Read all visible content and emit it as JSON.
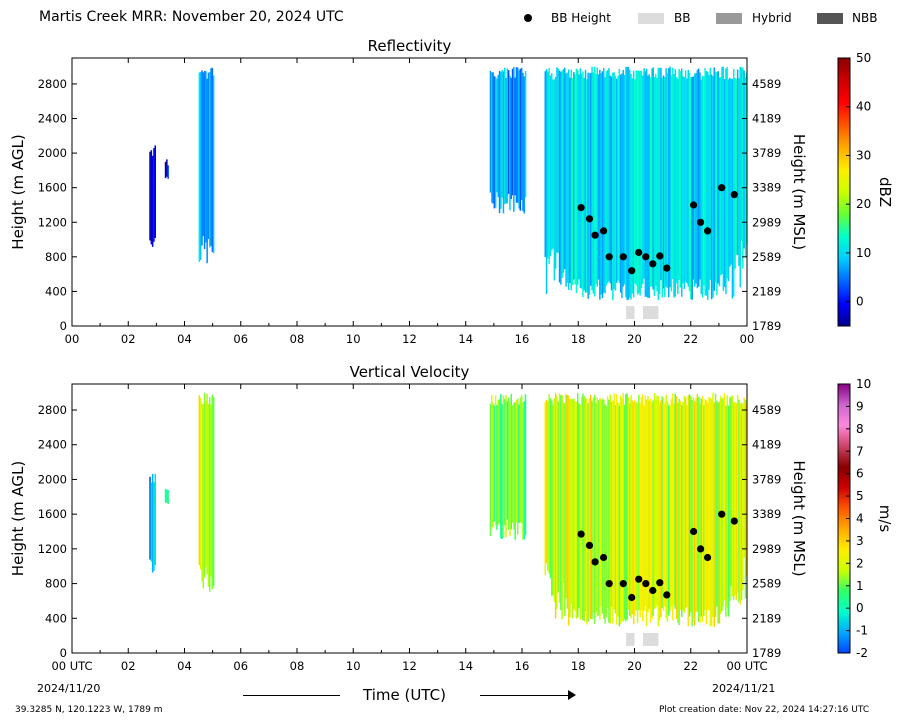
{
  "header": {
    "title": "Martis Creek MRR:  November 20, 2024 UTC",
    "legend": [
      {
        "label": "BB Height",
        "kind": "dot",
        "color": "#000000"
      },
      {
        "label": "BB",
        "kind": "box",
        "color": "#dcdcdc"
      },
      {
        "label": "Hybrid",
        "kind": "box",
        "color": "#999999"
      },
      {
        "label": "NBB",
        "kind": "box",
        "color": "#555555"
      }
    ]
  },
  "footer": {
    "location": "39.3285 N, 120.1223 W, 1789 m",
    "creation": "Plot creation date: Nov 22, 2024 14:27:16 UTC",
    "xlabel": "Time (UTC)",
    "date_start": "2024/11/20",
    "date_end": "2024/11/21"
  },
  "chart_data": [
    {
      "type": "heatmap",
      "title": "Reflectivity",
      "ylabel": "Height (m AGL)",
      "y2label": "Height (m MSL)",
      "xlim": [
        0,
        24
      ],
      "ylim": [
        0,
        3100
      ],
      "xticks": [
        "00",
        "02",
        "04",
        "06",
        "08",
        "10",
        "12",
        "14",
        "16",
        "18",
        "20",
        "22",
        "00"
      ],
      "yticks": [
        0,
        400,
        800,
        1200,
        1600,
        2000,
        2400,
        2800
      ],
      "y2ticks": [
        "1789",
        "2189",
        "2589",
        "2989",
        "3389",
        "3789",
        "4189",
        "4589"
      ],
      "colorbar": {
        "label": "dBZ",
        "min": -5,
        "max": 50,
        "ticks": [
          0,
          10,
          20,
          30,
          40,
          50
        ],
        "colors": [
          "#00008b",
          "#0000ff",
          "#0066ff",
          "#00ccff",
          "#00ffcc",
          "#66ff33",
          "#ccff00",
          "#ffee00",
          "#ffaa00",
          "#ff5500",
          "#ff0000",
          "#cc0000",
          "#8b0000"
        ]
      },
      "bb_height": [
        [
          18.1,
          1370
        ],
        [
          18.4,
          1240
        ],
        [
          18.6,
          1050
        ],
        [
          18.9,
          1100
        ],
        [
          19.1,
          800
        ],
        [
          19.6,
          800
        ],
        [
          19.9,
          640
        ],
        [
          20.15,
          850
        ],
        [
          20.4,
          800
        ],
        [
          20.65,
          720
        ],
        [
          20.9,
          810
        ],
        [
          21.15,
          670
        ],
        [
          22.1,
          1400
        ],
        [
          22.35,
          1200
        ],
        [
          22.6,
          1100
        ],
        [
          23.1,
          1600
        ],
        [
          23.55,
          1520
        ]
      ],
      "bb_type": [
        {
          "start": 19.7,
          "end": 20.0,
          "kind": "BB"
        },
        {
          "start": 20.3,
          "end": 20.85,
          "kind": "BB"
        }
      ],
      "echoes": [
        {
          "start": 2.75,
          "end": 2.95,
          "bottom": 900,
          "top": 2100,
          "value": -2
        },
        {
          "start": 3.3,
          "end": 3.4,
          "bottom": 1700,
          "top": 2000,
          "value": -1
        },
        {
          "start": 4.5,
          "end": 5.05,
          "bottom": 700,
          "top": 3000,
          "value": 8
        },
        {
          "start": 14.85,
          "end": 16.1,
          "bottom": 1300,
          "top": 3000,
          "value": 7
        },
        {
          "start": 16.8,
          "end": 24.0,
          "bottom": 300,
          "top": 3000,
          "value": 10
        }
      ]
    },
    {
      "type": "heatmap",
      "title": "Vertical Velocity",
      "ylabel": "Height (m AGL)",
      "y2label": "Height (m MSL)",
      "xlim": [
        0,
        24
      ],
      "ylim": [
        0,
        3100
      ],
      "xticks": [
        "00 UTC",
        "02",
        "04",
        "06",
        "08",
        "10",
        "12",
        "14",
        "16",
        "18",
        "20",
        "22",
        "00 UTC"
      ],
      "yticks": [
        0,
        400,
        800,
        1200,
        1600,
        2000,
        2400,
        2800
      ],
      "y2ticks": [
        "1789",
        "2189",
        "2589",
        "2989",
        "3389",
        "3789",
        "4189",
        "4589"
      ],
      "colorbar": {
        "label": "m/s",
        "min": -2,
        "max": 10,
        "ticks": [
          -2,
          -1,
          0,
          1,
          2,
          3,
          4,
          5,
          6,
          7,
          8,
          9,
          10
        ],
        "colors": [
          "#0044ff",
          "#00aaff",
          "#00ffcc",
          "#33ff66",
          "#ccff00",
          "#ffee00",
          "#ffaa00",
          "#ff5500",
          "#cc0000",
          "#880000",
          "#cc4466",
          "#ff88dd",
          "#cc66cc",
          "#880088"
        ]
      },
      "bb_height": [
        [
          18.1,
          1370
        ],
        [
          18.4,
          1240
        ],
        [
          18.6,
          1050
        ],
        [
          18.9,
          1100
        ],
        [
          19.1,
          800
        ],
        [
          19.6,
          800
        ],
        [
          19.9,
          640
        ],
        [
          20.15,
          850
        ],
        [
          20.4,
          800
        ],
        [
          20.65,
          720
        ],
        [
          20.9,
          810
        ],
        [
          21.15,
          670
        ],
        [
          22.1,
          1400
        ],
        [
          22.35,
          1200
        ],
        [
          22.6,
          1100
        ],
        [
          23.1,
          1600
        ],
        [
          23.55,
          1520
        ]
      ],
      "bb_type": [
        {
          "start": 19.7,
          "end": 20.0,
          "kind": "BB"
        },
        {
          "start": 20.3,
          "end": 20.85,
          "kind": "BB"
        }
      ],
      "echoes": [
        {
          "start": 2.75,
          "end": 2.95,
          "bottom": 900,
          "top": 2100,
          "value": -1
        },
        {
          "start": 3.3,
          "end": 3.4,
          "bottom": 1700,
          "top": 2000,
          "value": 1
        },
        {
          "start": 4.5,
          "end": 5.05,
          "bottom": 700,
          "top": 3000,
          "value": 2
        },
        {
          "start": 14.85,
          "end": 16.1,
          "bottom": 1300,
          "top": 3000,
          "value": 1
        },
        {
          "start": 16.8,
          "end": 24.0,
          "bottom": 300,
          "top": 3000,
          "value": 2
        }
      ]
    }
  ]
}
